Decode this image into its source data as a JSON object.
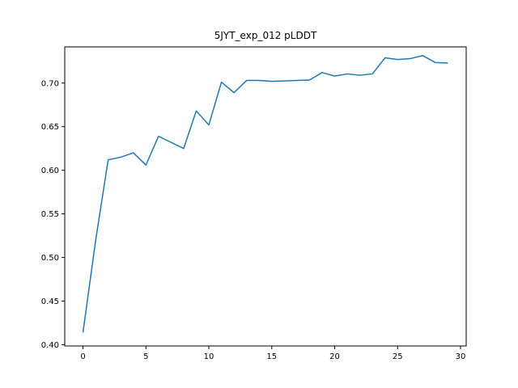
{
  "chart_data": {
    "type": "line",
    "title": "5JYT_exp_012 pLDDT",
    "xlabel": "",
    "ylabel": "",
    "xlim": [
      -1.45,
      30.45
    ],
    "ylim": [
      0.3985,
      0.7415
    ],
    "xticks": [
      0,
      5,
      10,
      15,
      20,
      25,
      30
    ],
    "xtick_labels": [
      "0",
      "5",
      "10",
      "15",
      "20",
      "25",
      "30"
    ],
    "yticks": [
      0.4,
      0.45,
      0.5,
      0.55,
      0.6,
      0.65,
      0.7
    ],
    "ytick_labels": [
      "0.40",
      "0.45",
      "0.50",
      "0.55",
      "0.60",
      "0.65",
      "0.70"
    ],
    "grid": false,
    "line_color": "#1f77b4",
    "series": [
      {
        "x": [
          0,
          1,
          2,
          3,
          4,
          5,
          6,
          7,
          8,
          9,
          10,
          11,
          12,
          13,
          14,
          15,
          16,
          17,
          18,
          19,
          20,
          21,
          22,
          23,
          24,
          25,
          26,
          27,
          28,
          29
        ],
        "values": [
          0.414,
          0.519,
          0.612,
          0.615,
          0.62,
          0.606,
          0.639,
          0.632,
          0.625,
          0.668,
          0.652,
          0.701,
          0.689,
          0.703,
          0.703,
          0.702,
          0.7025,
          0.703,
          0.7035,
          0.712,
          0.708,
          0.7105,
          0.709,
          0.7105,
          0.729,
          0.727,
          0.728,
          0.7315,
          0.7235,
          0.723
        ]
      }
    ]
  }
}
